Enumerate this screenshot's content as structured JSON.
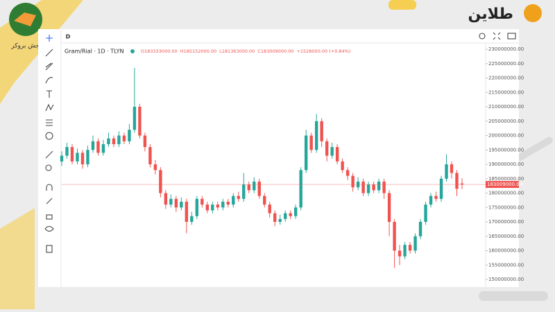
{
  "brand": {
    "site_logo": "طلاین",
    "broker_logo": "سنجش بروکر"
  },
  "toolbar": {
    "interval": "D"
  },
  "chart_data": {
    "type": "candlestick",
    "symbol": "Gram/Rial · 1D · TLYN",
    "legend": [
      "O183333000.00",
      "H185152000.00",
      "L181363000.00",
      "C183009000.00",
      "+1528000.00 (+0.84%)"
    ],
    "up_color": "#26a69a",
    "down_color": "#ef5350",
    "grid": false,
    "last_label": "183009000.00",
    "ylim": [
      147350000,
      231930000
    ],
    "yticks": [
      {
        "value": 150000000,
        "label": "150000000.00"
      },
      {
        "value": 155000000,
        "label": "155000000.00"
      },
      {
        "value": 160000000,
        "label": "160000000.00"
      },
      {
        "value": 165000000,
        "label": "165000000.00"
      },
      {
        "value": 170000000,
        "label": "170000000.00"
      },
      {
        "value": 175000000,
        "label": "175000000.00"
      },
      {
        "value": 180000000,
        "label": "180000000.00"
      },
      {
        "value": 185000000,
        "label": "185000000.00"
      },
      {
        "value": 190000000,
        "label": "190000000.00"
      },
      {
        "value": 195000000,
        "label": "195000000.00"
      },
      {
        "value": 200000000,
        "label": "200000000.00"
      },
      {
        "value": 205000000,
        "label": "205000000.00"
      },
      {
        "value": 210000000,
        "label": "210000000.00"
      },
      {
        "value": 215000000,
        "label": "215000000.00"
      },
      {
        "value": 220000000,
        "label": "220000000.00"
      },
      {
        "value": 225000000,
        "label": "225000000.00"
      },
      {
        "value": 230000000,
        "label": "230000000.00"
      }
    ],
    "open": [
      191000000,
      193000000,
      196000000,
      191000000,
      194000000,
      190000000,
      195000000,
      198000000,
      194000000,
      197000000,
      199000000,
      197000000,
      200000000,
      198000000,
      202000000,
      210000000,
      200000000,
      196000000,
      190000000,
      188000000,
      180000000,
      176000000,
      178000000,
      175000000,
      177000000,
      170000000,
      172000000,
      178000000,
      176000000,
      174000000,
      176000000,
      175000000,
      177000000,
      176000000,
      179000000,
      178000000,
      183000000,
      181000000,
      184000000,
      179000000,
      176000000,
      173000000,
      170000000,
      171000000,
      173000000,
      172000000,
      175000000,
      188000000,
      200000000,
      195000000,
      205000000,
      198000000,
      193000000,
      196000000,
      191000000,
      188000000,
      186000000,
      182000000,
      184000000,
      180000000,
      183000000,
      181000000,
      184000000,
      180000000,
      170000000,
      160000000,
      158000000,
      162000000,
      160000000,
      165000000,
      170000000,
      176000000,
      179000000,
      178000000,
      185000000,
      190000000,
      187000000,
      183333000
    ],
    "high": [
      194500000,
      197500000,
      197000000,
      195500000,
      195000000,
      196500000,
      200000000,
      199000000,
      198500000,
      201000000,
      200000000,
      201500000,
      201000000,
      204000000,
      223500000,
      211000000,
      201000000,
      197000000,
      191500000,
      189000000,
      181000000,
      179500000,
      179000000,
      178500000,
      178000000,
      173500000,
      179000000,
      179000000,
      177000000,
      177000000,
      177000000,
      178000000,
      178000000,
      180000000,
      180500000,
      187000000,
      184000000,
      185500000,
      185000000,
      180000000,
      177000000,
      174000000,
      172500000,
      174000000,
      174000000,
      176000000,
      189000000,
      202000000,
      201000000,
      207500000,
      206000000,
      199000000,
      197500000,
      197000000,
      192000000,
      189000000,
      187000000,
      185500000,
      185000000,
      184000000,
      184000000,
      185000000,
      185000000,
      181000000,
      171000000,
      162000000,
      163000000,
      163000000,
      166000000,
      171000000,
      177000000,
      180000000,
      180500000,
      186000000,
      193500000,
      191000000,
      188000000,
      185152000
    ],
    "low": [
      189500000,
      192000000,
      190000000,
      190000000,
      188500000,
      189000000,
      194000000,
      193000000,
      193000000,
      196000000,
      196000000,
      196000000,
      197000000,
      197000000,
      201000000,
      199000000,
      194500000,
      189000000,
      186500000,
      178500000,
      174500000,
      175000000,
      173500000,
      174000000,
      166000000,
      169000000,
      171000000,
      175000000,
      173000000,
      173000000,
      174000000,
      174000000,
      175000000,
      175000000,
      177000000,
      177000000,
      180000000,
      180000000,
      178000000,
      175000000,
      171500000,
      168500000,
      169000000,
      170000000,
      171000000,
      171000000,
      174000000,
      187000000,
      194000000,
      194000000,
      196000000,
      191000000,
      192000000,
      190000000,
      187000000,
      184500000,
      180500000,
      181000000,
      179000000,
      179000000,
      180000000,
      180000000,
      178000000,
      165000000,
      154000000,
      155000000,
      157000000,
      159000000,
      159000000,
      164000000,
      169000000,
      175000000,
      177000000,
      177000000,
      184000000,
      185000000,
      179000000,
      181363000
    ],
    "close": [
      193000000,
      196000000,
      191000000,
      194000000,
      190000000,
      195000000,
      198000000,
      194000000,
      197000000,
      199000000,
      197000000,
      200000000,
      198000000,
      202000000,
      210000000,
      200000000,
      196000000,
      190000000,
      188000000,
      180000000,
      176000000,
      178000000,
      175000000,
      177000000,
      170000000,
      172000000,
      178000000,
      176000000,
      174000000,
      176000000,
      175000000,
      177000000,
      176000000,
      179000000,
      178000000,
      183000000,
      181000000,
      184000000,
      179000000,
      176000000,
      173000000,
      170000000,
      171000000,
      173000000,
      172000000,
      175000000,
      188000000,
      200000000,
      195000000,
      205000000,
      198000000,
      193000000,
      196000000,
      191000000,
      188000000,
      186000000,
      182000000,
      184000000,
      180000000,
      183000000,
      181000000,
      184000000,
      180000000,
      170000000,
      160000000,
      158000000,
      162000000,
      160000000,
      165000000,
      170000000,
      176000000,
      179000000,
      178000000,
      185000000,
      190000000,
      187000000,
      181481000,
      183009000
    ]
  }
}
